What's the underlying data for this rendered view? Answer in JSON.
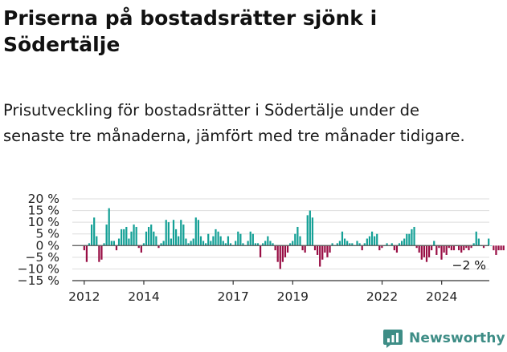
{
  "title": "Priserna på bostadsrätter sjönk i Södertälje",
  "subtitle": "Prisutveckling för bostadsrätter i Södertälje under de senaste tre månaderna, jämfört med tre månader tidigare.",
  "brand": {
    "name": "Newsworthy",
    "icon": "newsworthy-logo-icon",
    "color": "#3e8d86"
  },
  "colors": {
    "positive": "#14a096",
    "negative": "#990f45",
    "zero_line": "#555555",
    "grid": "#dddddd"
  },
  "chart_data": {
    "type": "bar",
    "title": "",
    "xlabel": "",
    "ylabel": "",
    "unit": "%",
    "ylim": [
      -15,
      20
    ],
    "y_ticks": [
      {
        "value": 20,
        "label": "20 %"
      },
      {
        "value": 15,
        "label": "15 %"
      },
      {
        "value": 10,
        "label": "10 %"
      },
      {
        "value": 5,
        "label": "5 %"
      },
      {
        "value": 0,
        "label": "0 %"
      },
      {
        "value": -5,
        "label": "−5 %"
      },
      {
        "value": -10,
        "label": "−10 %"
      },
      {
        "value": -15,
        "label": "−15 %"
      }
    ],
    "x_ticks": [
      {
        "value": 2012,
        "label": "2012"
      },
      {
        "value": 2014,
        "label": "2014"
      },
      {
        "value": 2017,
        "label": "2017"
      },
      {
        "value": 2019,
        "label": "2019"
      },
      {
        "value": 2022,
        "label": "2022"
      },
      {
        "value": 2024,
        "label": "2024"
      }
    ],
    "xlim": [
      2011.6,
      2025.6
    ],
    "grid": true,
    "annotation": {
      "text": "−2 %",
      "value": -2
    },
    "x_start": 2012.0,
    "x_step": 0.0833,
    "values": [
      -2,
      -7,
      1,
      9,
      12,
      4,
      -7,
      -6,
      1,
      9,
      16,
      2,
      2,
      -2,
      3,
      7,
      7,
      8,
      3,
      6,
      9,
      8,
      -1,
      -3,
      1,
      6,
      8,
      9,
      6,
      4,
      -1,
      1,
      2,
      11,
      10,
      3,
      11,
      7,
      4,
      11,
      9,
      3,
      1,
      2,
      3,
      12,
      11,
      4,
      2,
      1,
      5,
      2,
      4,
      7,
      6,
      4,
      2,
      1,
      4,
      1,
      0,
      2,
      6,
      5,
      1,
      0,
      2,
      6,
      5,
      1,
      1,
      -5,
      1,
      2,
      4,
      2,
      1,
      -2,
      -7,
      -10,
      -7,
      -5,
      -3,
      1,
      2,
      5,
      8,
      4,
      -2,
      -3,
      13,
      15,
      12,
      -2,
      -4,
      -9,
      -6,
      -3,
      -5,
      -3,
      1,
      0,
      1,
      2,
      6,
      3,
      2,
      1,
      1,
      0,
      2,
      1,
      -2,
      1,
      3,
      4,
      6,
      4,
      5,
      -2,
      -1,
      0,
      1,
      0,
      1,
      -2,
      -3,
      1,
      2,
      3,
      5,
      5,
      7,
      8,
      -1,
      -3,
      -6,
      -5,
      -7,
      -5,
      -2,
      2,
      -4,
      -1,
      -6,
      -3,
      -4,
      -1,
      -2,
      -2,
      0,
      -2,
      -3,
      -2,
      -1,
      -2,
      -1,
      1,
      6,
      3,
      0,
      -1,
      0,
      3,
      0,
      -2,
      -4,
      -2,
      -2,
      -2
    ]
  }
}
